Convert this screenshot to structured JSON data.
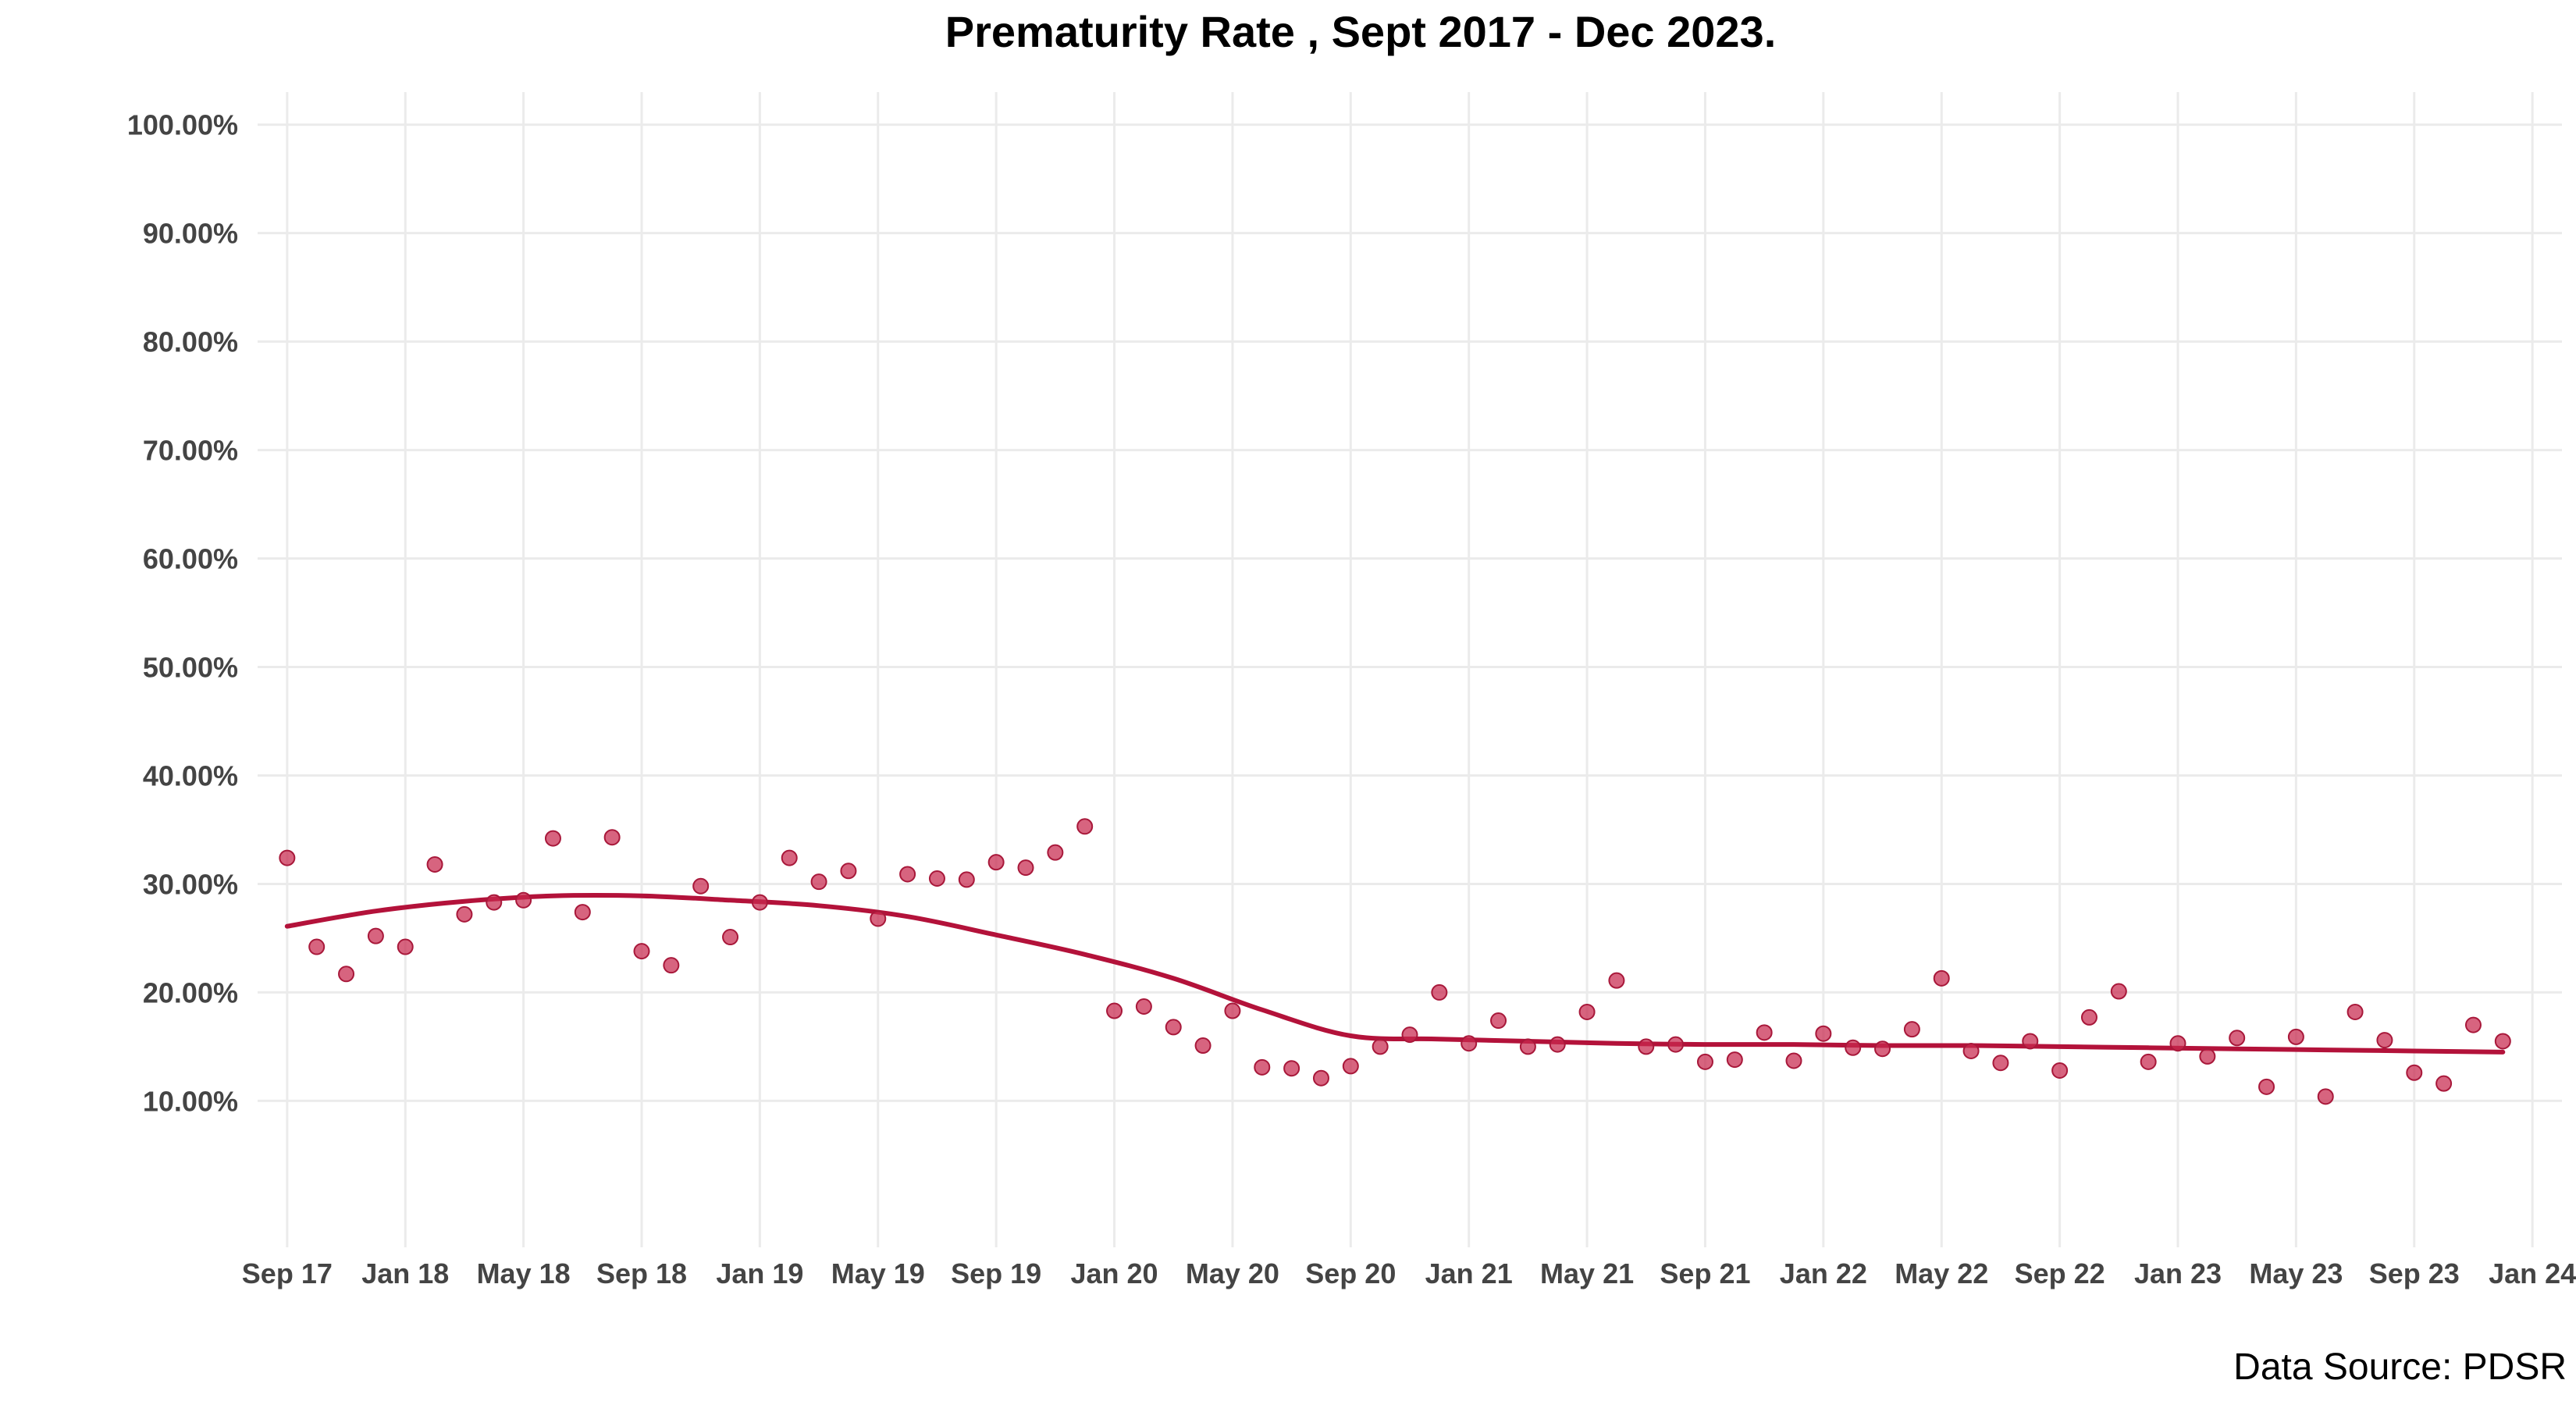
{
  "chart_data": {
    "type": "scatter",
    "title": "Prematurity Rate , Sept 2017 - Dec 2023.",
    "source_note": "Data Source: PDSR",
    "xlabel": "",
    "ylabel": "",
    "x_ticks": [
      {
        "date": "2017-09",
        "label": "Sep 17"
      },
      {
        "date": "2018-01",
        "label": "Jan 18"
      },
      {
        "date": "2018-05",
        "label": "May 18"
      },
      {
        "date": "2018-09",
        "label": "Sep 18"
      },
      {
        "date": "2019-01",
        "label": "Jan 19"
      },
      {
        "date": "2019-05",
        "label": "May 19"
      },
      {
        "date": "2019-09",
        "label": "Sep 19"
      },
      {
        "date": "2020-01",
        "label": "Jan 20"
      },
      {
        "date": "2020-05",
        "label": "May 20"
      },
      {
        "date": "2020-09",
        "label": "Sep 20"
      },
      {
        "date": "2021-01",
        "label": "Jan 21"
      },
      {
        "date": "2021-05",
        "label": "May 21"
      },
      {
        "date": "2021-09",
        "label": "Sep 21"
      },
      {
        "date": "2022-01",
        "label": "Jan 22"
      },
      {
        "date": "2022-05",
        "label": "May 22"
      },
      {
        "date": "2022-09",
        "label": "Sep 22"
      },
      {
        "date": "2023-01",
        "label": "Jan 23"
      },
      {
        "date": "2023-05",
        "label": "May 23"
      },
      {
        "date": "2023-09",
        "label": "Sep 23"
      },
      {
        "date": "2024-01",
        "label": "Jan 24"
      }
    ],
    "y_ticks": [
      {
        "value": 10,
        "label": "10.00%"
      },
      {
        "value": 20,
        "label": "20.00%"
      },
      {
        "value": 30,
        "label": "30.00%"
      },
      {
        "value": 40,
        "label": "40.00%"
      },
      {
        "value": 50,
        "label": "50.00%"
      },
      {
        "value": 60,
        "label": "60.00%"
      },
      {
        "value": 70,
        "label": "70.00%"
      },
      {
        "value": 80,
        "label": "80.00%"
      },
      {
        "value": 90,
        "label": "90.00%"
      },
      {
        "value": 100,
        "label": "100.00%"
      }
    ],
    "xlim": [
      "2017-08",
      "2024-02"
    ],
    "ylim": [
      -3.5,
      103
    ],
    "grid": true,
    "legend": "none",
    "point_color": "#c8284e",
    "trend_color": "#b3123a",
    "series": [
      {
        "kind": "points",
        "x": [
          "2017-09",
          "2017-10",
          "2017-11",
          "2017-12",
          "2018-01",
          "2018-02",
          "2018-03",
          "2018-04",
          "2018-05",
          "2018-06",
          "2018-07",
          "2018-08",
          "2018-09",
          "2018-10",
          "2018-11",
          "2018-12",
          "2019-01",
          "2019-02",
          "2019-03",
          "2019-04",
          "2019-05",
          "2019-06",
          "2019-07",
          "2019-08",
          "2019-09",
          "2019-10",
          "2019-11",
          "2019-12",
          "2020-01",
          "2020-02",
          "2020-03",
          "2020-04",
          "2020-05",
          "2020-06",
          "2020-07",
          "2020-08",
          "2020-09",
          "2020-10",
          "2020-11",
          "2020-12",
          "2021-01",
          "2021-02",
          "2021-03",
          "2021-04",
          "2021-05",
          "2021-06",
          "2021-07",
          "2021-08",
          "2021-09",
          "2021-10",
          "2021-11",
          "2021-12",
          "2022-01",
          "2022-02",
          "2022-03",
          "2022-04",
          "2022-05",
          "2022-06",
          "2022-07",
          "2022-08",
          "2022-09",
          "2022-10",
          "2022-11",
          "2022-12",
          "2023-01",
          "2023-02",
          "2023-03",
          "2023-04",
          "2023-05",
          "2023-06",
          "2023-07",
          "2023-08",
          "2023-09",
          "2023-10",
          "2023-11",
          "2023-12"
        ],
        "y": [
          32.4,
          24.2,
          21.7,
          25.2,
          24.2,
          31.8,
          27.2,
          28.3,
          28.5,
          34.2,
          27.4,
          34.3,
          23.8,
          22.5,
          29.8,
          25.1,
          28.3,
          32.4,
          30.2,
          31.2,
          26.8,
          30.9,
          30.5,
          30.4,
          32.0,
          31.5,
          32.9,
          35.3,
          18.3,
          18.7,
          16.8,
          15.1,
          18.3,
          13.1,
          13.0,
          12.1,
          13.2,
          15.0,
          16.1,
          20.0,
          15.3,
          17.4,
          15.0,
          15.2,
          18.2,
          21.1,
          15.0,
          15.2,
          13.6,
          13.8,
          16.3,
          13.7,
          16.2,
          14.9,
          14.8,
          16.6,
          21.3,
          14.6,
          13.5,
          15.5,
          12.8,
          17.7,
          20.1,
          13.6,
          15.3,
          14.1,
          15.8,
          11.3,
          15.9,
          10.4,
          18.2,
          15.6,
          12.6,
          11.6,
          17.0,
          15.5
        ]
      },
      {
        "kind": "smooth-trend",
        "x": [
          "2017-09",
          "2017-12",
          "2018-03",
          "2018-06",
          "2018-09",
          "2018-12",
          "2019-03",
          "2019-06",
          "2019-09",
          "2019-12",
          "2020-03",
          "2020-06",
          "2020-09",
          "2020-12",
          "2021-03",
          "2021-06",
          "2021-09",
          "2021-12",
          "2022-03",
          "2022-06",
          "2022-09",
          "2022-12",
          "2023-03",
          "2023-06",
          "2023-09",
          "2023-12"
        ],
        "y": [
          26.1,
          27.5,
          28.4,
          28.9,
          28.9,
          28.5,
          28.0,
          27.0,
          25.3,
          23.5,
          21.3,
          18.4,
          16.0,
          15.7,
          15.5,
          15.3,
          15.2,
          15.2,
          15.1,
          15.1,
          15.0,
          14.9,
          14.8,
          14.7,
          14.6,
          14.5
        ]
      }
    ]
  }
}
